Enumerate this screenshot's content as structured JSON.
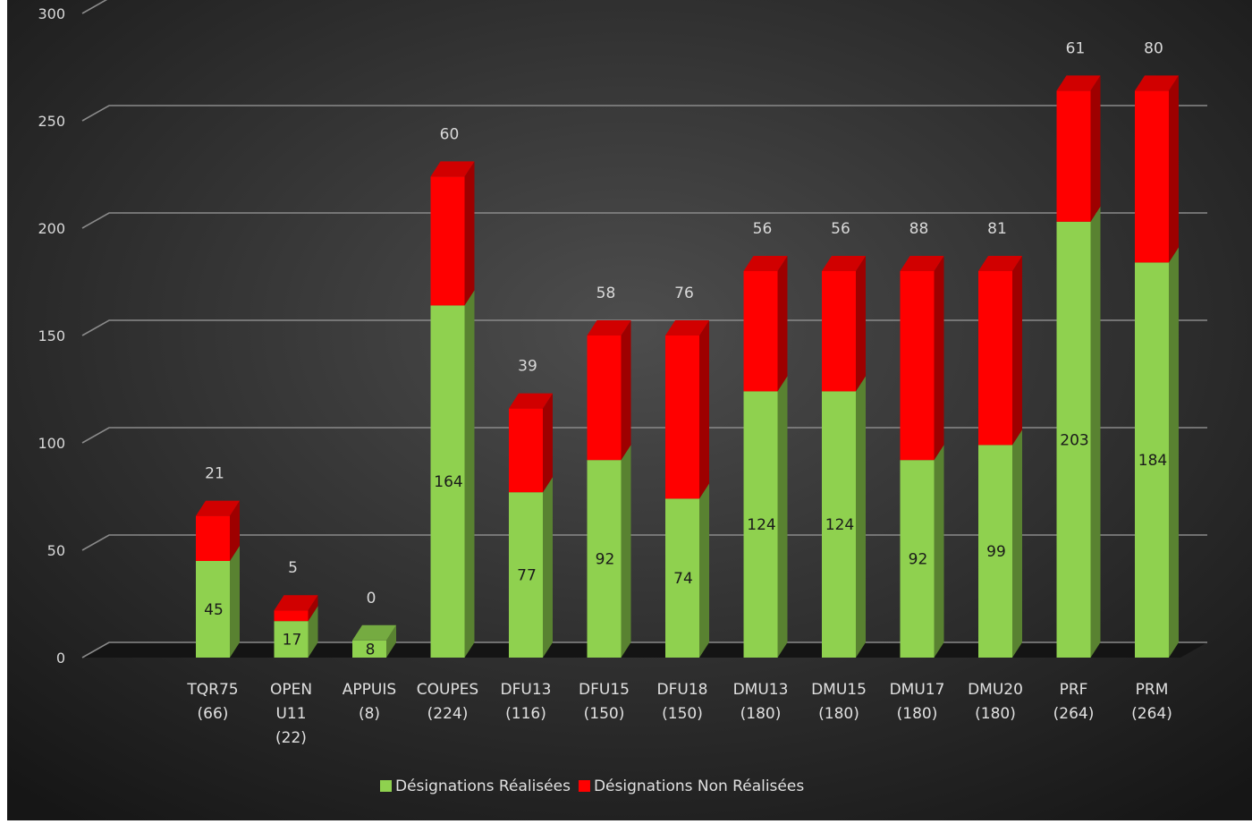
{
  "chart_data": {
    "type": "bar",
    "stacked": true,
    "style": "3d",
    "title": "",
    "xlabel": "",
    "ylabel": "",
    "ylim": [
      0,
      300
    ],
    "yticks": [
      0,
      50,
      100,
      150,
      200,
      250,
      300
    ],
    "grid": true,
    "legend_position": "bottom",
    "categories": [
      [
        "TQR75",
        "(66)"
      ],
      [
        "OPEN",
        "U11",
        "(22)"
      ],
      [
        "APPUIS",
        "(8)"
      ],
      [
        "COUPES",
        "(224)"
      ],
      [
        "DFU13",
        "(116)"
      ],
      [
        "DFU15",
        "(150)"
      ],
      [
        "DFU18",
        "(150)"
      ],
      [
        "DMU13",
        "(180)"
      ],
      [
        "DMU15",
        "(180)"
      ],
      [
        "DMU17",
        "(180)"
      ],
      [
        "DMU20",
        "(180)"
      ],
      [
        "PRF",
        "(264)"
      ],
      [
        "PRM",
        "(264)"
      ]
    ],
    "series": [
      {
        "name": "Désignations Réalisées",
        "color": "#8fd14f",
        "values": [
          45,
          17,
          8,
          164,
          77,
          92,
          74,
          124,
          124,
          92,
          99,
          203,
          184
        ]
      },
      {
        "name": "Désignations Non Réalisées",
        "color": "#ff0000",
        "values": [
          21,
          5,
          0,
          60,
          39,
          58,
          76,
          56,
          56,
          88,
          81,
          61,
          80
        ]
      }
    ]
  }
}
